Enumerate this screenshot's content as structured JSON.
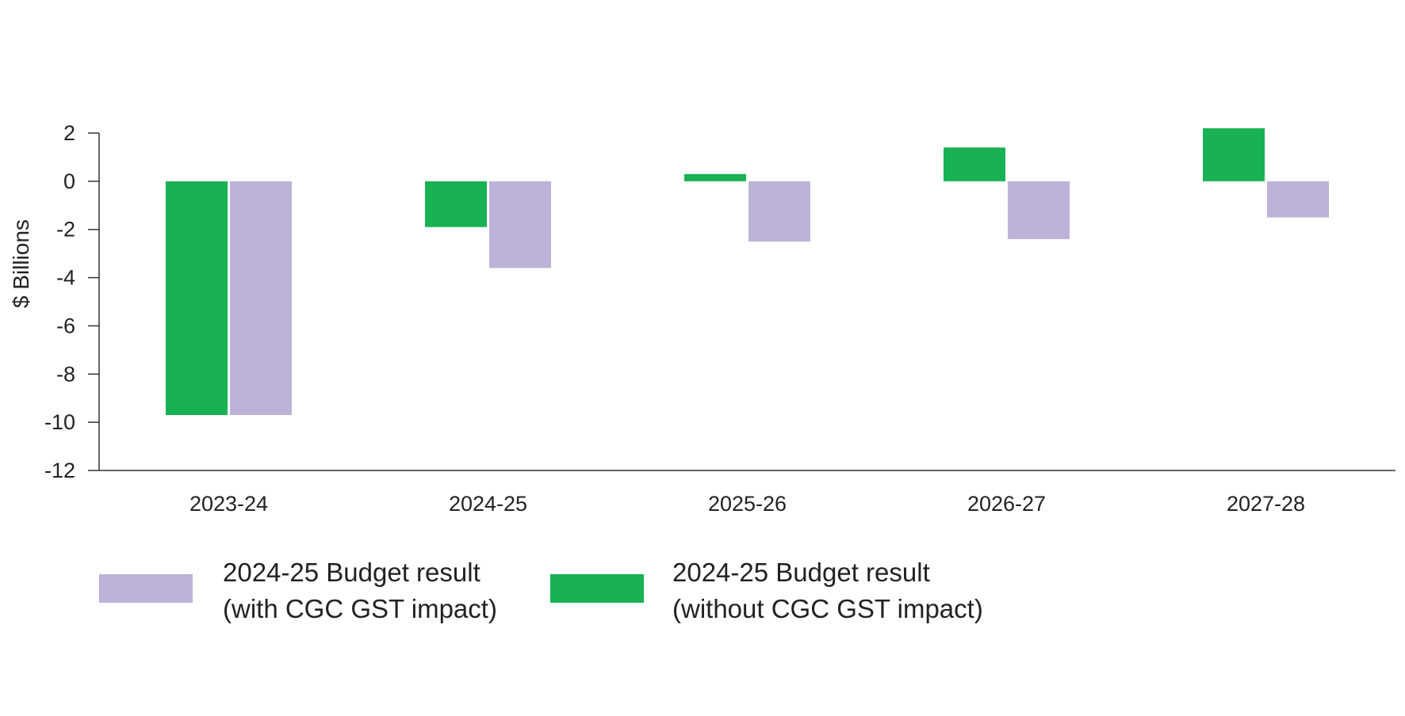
{
  "chart_data": {
    "type": "bar",
    "categories": [
      "2023-24",
      "2024-25",
      "2025-26",
      "2026-27",
      "2027-28"
    ],
    "series": [
      {
        "name": "2024-25 Budget result (without CGC GST impact)",
        "color": "#18b153",
        "values": [
          -9.7,
          -1.9,
          0.3,
          1.4,
          2.2
        ]
      },
      {
        "name": "2024-25 Budget result (with CGC GST impact)",
        "color": "#bdb3d8",
        "values": [
          -9.7,
          -3.6,
          -2.5,
          -2.4,
          -1.5
        ]
      }
    ],
    "ylabel": "$ Billions",
    "ylim": [
      -12,
      2
    ],
    "yticks": [
      2,
      0,
      -2,
      -4,
      -6,
      -8,
      -10,
      -12
    ],
    "grid": false
  },
  "legend": {
    "items": [
      {
        "line1": "2024-25 Budget result",
        "line2": "(with CGC GST impact)",
        "color": "#bdb3d8"
      },
      {
        "line1": "2024-25 Budget result",
        "line2": "(without CGC GST impact)",
        "color": "#18b153"
      }
    ]
  }
}
